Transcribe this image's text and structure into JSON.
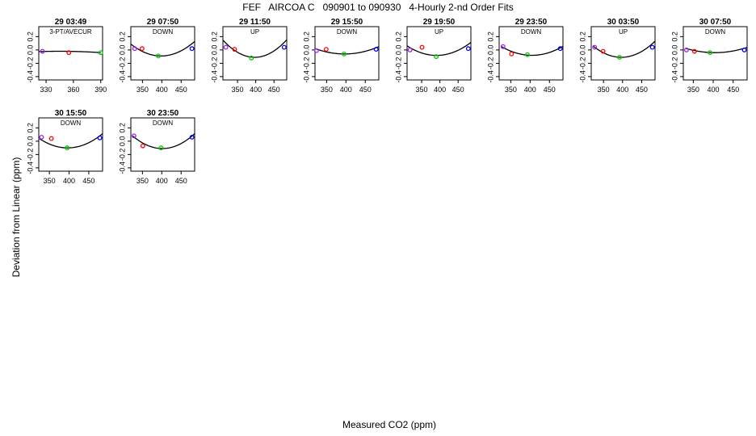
{
  "title": "FEF   AIRCOA C   090901 to 090930   4-Hourly 2-nd Order Fits",
  "xlabel": "Measured CO2 (ppm)",
  "ylabel": "Deviation from Linear (ppm)",
  "colors": {
    "purple": "#a020f0",
    "red": "#ff0000",
    "green": "#00c800",
    "blue": "#0000ff",
    "curve": "#000000"
  },
  "chart_data": [
    {
      "type": "scatter",
      "title": "29 03:49",
      "subtitle": "3-PT/AVECUR",
      "xlim": [
        322,
        392
      ],
      "ylim": [
        -0.45,
        0.35
      ],
      "xticks": [
        330,
        360,
        390
      ],
      "yticks": [
        -0.4,
        -0.2,
        0.0,
        0.2
      ],
      "grid": false,
      "points": [
        {
          "x": 326,
          "y": -0.02,
          "color": "purple"
        },
        {
          "x": 355,
          "y": -0.04,
          "color": "red"
        },
        {
          "x": 390,
          "y": -0.04,
          "color": "green"
        }
      ],
      "curve": {
        "x0": 322,
        "x1": 390,
        "a": -1e-05,
        "b": -0.0011,
        "c": -0.05
      }
    },
    {
      "type": "scatter",
      "title": "29 07:50",
      "subtitle": "DOWN",
      "xlim": [
        320,
        485
      ],
      "ylim": [
        -0.45,
        0.35
      ],
      "xticks": [
        350,
        400,
        450
      ],
      "yticks": [
        -0.4,
        -0.2,
        0.0,
        0.2
      ],
      "grid": false,
      "points": [
        {
          "x": 330,
          "y": 0.02,
          "color": "purple"
        },
        {
          "x": 349,
          "y": 0.02,
          "color": "red"
        },
        {
          "x": 391,
          "y": -0.09,
          "color": "green"
        },
        {
          "x": 478,
          "y": 0.02,
          "color": "blue"
        }
      ],
      "curve": {
        "x0": 320,
        "x1": 485,
        "a": 2.9e-05,
        "b": 0.0001,
        "c": -0.09
      }
    },
    {
      "type": "scatter",
      "title": "29 11:50",
      "subtitle": "UP",
      "xlim": [
        310,
        485
      ],
      "ylim": [
        -0.45,
        0.35
      ],
      "xticks": [
        350,
        400,
        450
      ],
      "yticks": [
        -0.4,
        -0.2,
        0.0,
        0.2
      ],
      "grid": false,
      "points": [
        {
          "x": 318,
          "y": 0.04,
          "color": "purple"
        },
        {
          "x": 342,
          "y": 0.01,
          "color": "red"
        },
        {
          "x": 388,
          "y": -0.12,
          "color": "green"
        },
        {
          "x": 478,
          "y": 0.04,
          "color": "blue"
        }
      ],
      "curve": {
        "x0": 310,
        "x1": 485,
        "a": 3.4e-05,
        "b": 0.0002,
        "c": -0.11
      }
    },
    {
      "type": "scatter",
      "title": "29 15:50",
      "subtitle": "DOWN",
      "xlim": [
        320,
        485
      ],
      "ylim": [
        -0.45,
        0.35
      ],
      "xticks": [
        350,
        400,
        450
      ],
      "yticks": [
        -0.4,
        -0.2,
        0.0,
        0.2
      ],
      "grid": false,
      "points": [
        {
          "x": 324,
          "y": -0.01,
          "color": "purple"
        },
        {
          "x": 349,
          "y": 0.01,
          "color": "red"
        },
        {
          "x": 395,
          "y": -0.06,
          "color": "green"
        },
        {
          "x": 478,
          "y": 0.01,
          "color": "blue"
        }
      ],
      "curve": {
        "x0": 320,
        "x1": 485,
        "a": 1.4e-05,
        "b": 0.0001,
        "c": -0.06
      }
    },
    {
      "type": "scatter",
      "title": "29 19:50",
      "subtitle": "UP",
      "xlim": [
        310,
        485
      ],
      "ylim": [
        -0.45,
        0.35
      ],
      "xticks": [
        350,
        400,
        450
      ],
      "yticks": [
        -0.4,
        -0.2,
        0.0,
        0.2
      ],
      "grid": false,
      "points": [
        {
          "x": 318,
          "y": 0.0,
          "color": "purple"
        },
        {
          "x": 351,
          "y": 0.04,
          "color": "red"
        },
        {
          "x": 390,
          "y": -0.1,
          "color": "green"
        },
        {
          "x": 478,
          "y": 0.02,
          "color": "blue"
        }
      ],
      "curve": {
        "x0": 310,
        "x1": 485,
        "a": 2.2e-05,
        "b": 0.0004,
        "c": -0.08
      }
    },
    {
      "type": "scatter",
      "title": "29 23:50",
      "subtitle": "DOWN",
      "xlim": [
        320,
        485
      ],
      "ylim": [
        -0.45,
        0.35
      ],
      "xticks": [
        350,
        400,
        450
      ],
      "yticks": [
        -0.4,
        -0.2,
        0.0,
        0.2
      ],
      "grid": false,
      "points": [
        {
          "x": 330,
          "y": 0.05,
          "color": "purple"
        },
        {
          "x": 352,
          "y": -0.06,
          "color": "red"
        },
        {
          "x": 393,
          "y": -0.07,
          "color": "green"
        },
        {
          "x": 478,
          "y": 0.02,
          "color": "blue"
        }
      ],
      "curve": {
        "x0": 325,
        "x1": 485,
        "a": 2.1e-05,
        "b": -0.0002,
        "c": -0.08
      }
    },
    {
      "type": "scatter",
      "title": "30 03:50",
      "subtitle": "UP",
      "xlim": [
        318,
        485
      ],
      "ylim": [
        -0.45,
        0.35
      ],
      "xticks": [
        350,
        400,
        450
      ],
      "yticks": [
        -0.4,
        -0.2,
        0.0,
        0.2
      ],
      "grid": false,
      "points": [
        {
          "x": 327,
          "y": 0.04,
          "color": "purple"
        },
        {
          "x": 349,
          "y": -0.02,
          "color": "red"
        },
        {
          "x": 392,
          "y": -0.11,
          "color": "green"
        },
        {
          "x": 478,
          "y": 0.04,
          "color": "blue"
        }
      ],
      "curve": {
        "x0": 322,
        "x1": 485,
        "a": 3.1e-05,
        "b": 0.0002,
        "c": -0.11
      }
    },
    {
      "type": "scatter",
      "title": "30 07:50",
      "subtitle": "DOWN",
      "xlim": [
        325,
        485
      ],
      "ylim": [
        -0.45,
        0.35
      ],
      "xticks": [
        350,
        400,
        450
      ],
      "yticks": [
        -0.4,
        -0.2,
        0.0,
        0.2
      ],
      "grid": false,
      "points": [
        {
          "x": 333,
          "y": 0.0,
          "color": "purple"
        },
        {
          "x": 353,
          "y": -0.02,
          "color": "red"
        },
        {
          "x": 392,
          "y": -0.04,
          "color": "green"
        },
        {
          "x": 478,
          "y": 0.0,
          "color": "blue"
        }
      ],
      "curve": {
        "x0": 330,
        "x1": 485,
        "a": 1.2e-05,
        "b": -0.0001,
        "c": -0.04
      }
    },
    {
      "type": "scatter",
      "title": "30 15:50",
      "subtitle": "DOWN",
      "xlim": [
        323,
        485
      ],
      "ylim": [
        -0.45,
        0.35
      ],
      "xticks": [
        350,
        400,
        450
      ],
      "yticks": [
        -0.4,
        -0.2,
        0.0,
        0.2
      ],
      "grid": false,
      "points": [
        {
          "x": 330,
          "y": 0.06,
          "color": "purple"
        },
        {
          "x": 355,
          "y": 0.04,
          "color": "red"
        },
        {
          "x": 395,
          "y": -0.1,
          "color": "green"
        },
        {
          "x": 478,
          "y": 0.05,
          "color": "blue"
        }
      ],
      "curve": {
        "x0": 325,
        "x1": 485,
        "a": 2.7e-05,
        "b": 0.0002,
        "c": -0.1
      }
    },
    {
      "type": "scatter",
      "title": "30 23:50",
      "subtitle": "DOWN",
      "xlim": [
        320,
        485
      ],
      "ylim": [
        -0.45,
        0.35
      ],
      "xticks": [
        350,
        400,
        450
      ],
      "yticks": [
        -0.4,
        -0.2,
        0.0,
        0.2
      ],
      "grid": false,
      "points": [
        {
          "x": 328,
          "y": 0.08,
          "color": "purple"
        },
        {
          "x": 351,
          "y": -0.07,
          "color": "red"
        },
        {
          "x": 398,
          "y": -0.1,
          "color": "green"
        },
        {
          "x": 478,
          "y": 0.06,
          "color": "blue"
        }
      ],
      "curve": {
        "x0": 325,
        "x1": 485,
        "a": 3.2e-05,
        "b": -0.0001,
        "c": -0.11
      }
    }
  ]
}
